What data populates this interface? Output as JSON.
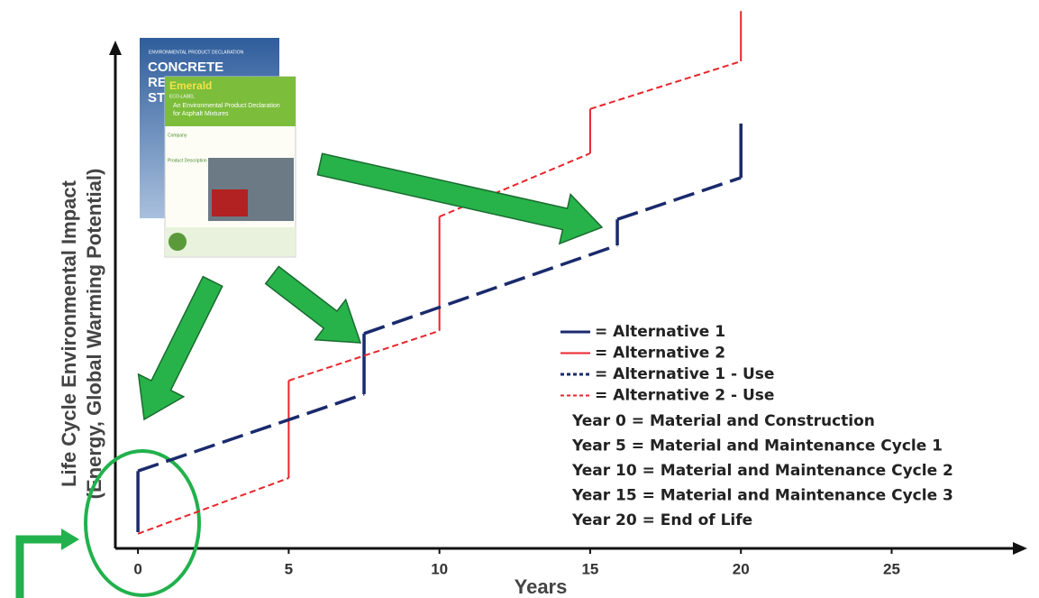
{
  "chart_data": {
    "type": "line",
    "xlabel": "Years",
    "ylabel": [
      "Life Cycle Environmental Impact",
      "(Energy, Global Warming Potential)"
    ],
    "xlim": [
      -0.75,
      29.2
    ],
    "ylim": [
      0,
      100
    ],
    "xticks": [
      0,
      5,
      10,
      15,
      20,
      25
    ],
    "series": [
      {
        "name": "= Alternative 1",
        "color": "#1a2a6c",
        "style": "solid",
        "x": [
          0,
          0,
          null,
          7.5,
          7.5,
          null,
          15.9,
          15.9,
          null,
          20,
          20
        ],
        "values": [
          3,
          14.3,
          null,
          28.5,
          39.7,
          null,
          56,
          60.8,
          null,
          68.5,
          78.5
        ]
      },
      {
        "name": "= Alternative 2",
        "color": "#e8262b",
        "style": "solid",
        "x": [
          5,
          5,
          null,
          10,
          10,
          null,
          15,
          15,
          null,
          20,
          20
        ],
        "values": [
          13,
          31,
          null,
          40.2,
          61.3,
          null,
          73,
          81.2,
          null,
          90,
          99.3
        ]
      },
      {
        "name": "= Alternative 1 - Use",
        "color": "#1a2a6c",
        "style": "dashed",
        "x": [
          0,
          7.5,
          null,
          7.5,
          15.9,
          null,
          15.9,
          20
        ],
        "values": [
          14.3,
          28.5,
          null,
          39.7,
          56,
          null,
          60.8,
          68.5
        ]
      },
      {
        "name": "= Alternative 2 - Use",
        "color": "#e8262b",
        "style": "dashed",
        "x": [
          0,
          5,
          null,
          5,
          10,
          null,
          10,
          15,
          null,
          15,
          20
        ],
        "values": [
          2.7,
          13,
          null,
          31,
          40.2,
          null,
          61.3,
          73,
          null,
          81.2,
          90
        ]
      }
    ],
    "annotations": [
      "Year 0 = Material and Construction",
      "Year 5 = Material and Maintenance Cycle 1",
      "Year 10 = Material and Maintenance Cycle 2",
      "Year 15 = Material and Maintenance Cycle 3",
      "Year 20 = End of Life"
    ]
  },
  "documents": [
    {
      "header": "ENVIRONMENTAL PRODUCT DECLARATION",
      "title": [
        "CONCRETE",
        "RE",
        "STI"
      ]
    },
    {
      "brand": "Emerald",
      "label": "ECO-LABEL",
      "title": [
        "An Environmental Product Declaration",
        "for Asphalt Mixtures"
      ],
      "sections": [
        "Company",
        "Product Description"
      ]
    }
  ]
}
